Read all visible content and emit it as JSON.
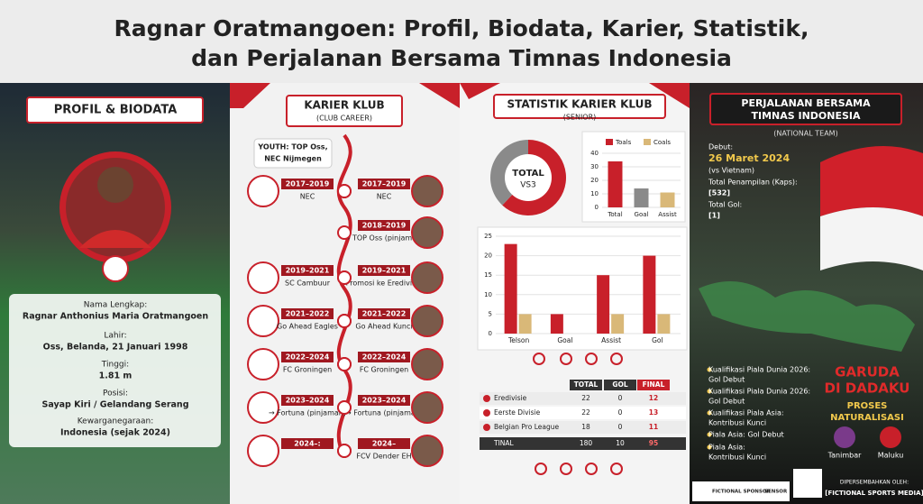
{
  "header": {
    "title_lines": [
      "Ragnar Oratmangoen: Profil, Biodata, Karier, Statistik,",
      "dan Perjalanan Bersama Timnas Indonesia"
    ]
  },
  "profile": {
    "heading": "PROFIL & BIODATA",
    "fields": [
      {
        "label": "Nama Lengkap:",
        "value": "Ragnar Anthonius Maria Oratmangoen"
      },
      {
        "label": "Lahir:",
        "value": "Oss, Belanda, 21 Januari 1998"
      },
      {
        "label": "Tinggi:",
        "value": "1.81 m"
      },
      {
        "label": "Posisi:",
        "value": "Sayap Kiri / Gelandang Serang"
      },
      {
        "label": "Kewarganegaraan:",
        "value": "Indonesia (sejak 2024)"
      }
    ]
  },
  "career": {
    "heading": "KARIER KLUB",
    "subheading": "(CLUB CAREER)",
    "youth": [
      "YOUTH: TOP Oss,",
      "NEC Nijmegen"
    ],
    "left": [
      {
        "period": "2017–2019",
        "club": "NEC"
      },
      {
        "period": "2019–2021",
        "club": "SC Cambuur"
      },
      {
        "period": "2021–2022",
        "club": "Go Ahead Eagles"
      },
      {
        "period": "2022–2024",
        "club": "FC Groningen"
      },
      {
        "period": "2023–2024",
        "club": "→ Fortuna (pinjaman)"
      },
      {
        "period": "2024–:",
        "club": ""
      }
    ],
    "right": [
      {
        "period": "2017–2019",
        "club": "NEC"
      },
      {
        "period": "2018–2019",
        "club": "→ TOP Oss (pinjaman)"
      },
      {
        "period": "2019–2021",
        "club": "Promosi ke Eredivisie"
      },
      {
        "period": "2021–2022",
        "club": "Go Ahead Kunci"
      },
      {
        "period": "2022–2024",
        "club": "FC Groningen"
      },
      {
        "period": "2023–2024",
        "club": "→ Fortuna (pinjaman)"
      },
      {
        "period": "2024–",
        "club": "FCV Dender EH"
      }
    ]
  },
  "stats": {
    "heading": "STATISTIK KARIER KLUB",
    "subheading": "(SENIOR)",
    "table": {
      "columns": [
        "TOTAL",
        "GOL",
        "FINAL"
      ],
      "rows": [
        [
          "Eredivisie",
          "22",
          "0",
          "12"
        ],
        [
          "Eerste Divisie",
          "22",
          "0",
          "13"
        ],
        [
          "Belgian Pro League",
          "18",
          "0",
          "11"
        ],
        [
          "TINAL",
          "180",
          "10",
          "95"
        ]
      ]
    }
  },
  "chart_data": [
    {
      "type": "pie",
      "center_label": [
        "TOTAL",
        "VS3"
      ],
      "values": [
        62,
        38
      ],
      "colors": [
        "#c8202a",
        "#8a8a8a"
      ]
    },
    {
      "type": "bar",
      "legend": [
        {
          "name": "Toals",
          "color": "#c8202a"
        },
        {
          "name": "Coals",
          "color": "#d9b878"
        }
      ],
      "categories": [
        "Total",
        "Goal",
        "Assist"
      ],
      "values": [
        34,
        14,
        11
      ],
      "colors": [
        "#c8202a",
        "#8a8a8a",
        "#d9b878"
      ],
      "ylim": [
        0,
        40
      ],
      "yticks": [
        0,
        10,
        20,
        30,
        40
      ]
    },
    {
      "type": "bar",
      "categories": [
        "Telson",
        "Goal",
        "Assist",
        "Gol"
      ],
      "series": [
        {
          "color": "#c8202a",
          "values": [
            23,
            5,
            15,
            20
          ]
        },
        {
          "color": "#d9b878",
          "values": [
            5,
            0,
            5,
            5
          ]
        }
      ],
      "ylim": [
        0,
        25
      ],
      "yticks": [
        0,
        5,
        10,
        15,
        20,
        25
      ]
    }
  ],
  "national": {
    "heading": [
      "PERJALANAN BERSAMA",
      "TIMNAS INDONESIA"
    ],
    "subheading": "(NATIONAL TEAM)",
    "debut_label": "Debut:",
    "debut_date": "26 Maret 2024",
    "debut_opponent": "(vs Vietnam)",
    "caps_label": "Total Penampilan (Kaps):",
    "caps": "[532]",
    "goals_label": "Total Gol:",
    "goals": "[1]",
    "achievements": [
      {
        "title": "Kualifikasi Piala Dunia 2026:",
        "detail": "Gol Debut"
      },
      {
        "title": "Kualifikasi Piala Dunia 2026:",
        "detail": "Gol Debut"
      },
      {
        "title": "Kualifikasi Piala Asia:",
        "detail": "Kontribusi Kunci"
      },
      {
        "title": "Piala Asia: Gol Debut"
      },
      {
        "title": "Piala Asia:",
        "detail": "Kontribusi Kunci"
      }
    ],
    "slogan": [
      "GARUDA",
      "DI DADAKU"
    ],
    "process": [
      "PROSES",
      "NATURALISASI"
    ],
    "origins": [
      "Tanimbar",
      "Maluku"
    ],
    "presented_by": "DIPERSEMBAHKAN OLEH:",
    "media": "[FICTIONAL SPORTS MEDIA]",
    "sponsors": [
      "FICTIONAL SPONSOR",
      "SENSOR"
    ]
  }
}
